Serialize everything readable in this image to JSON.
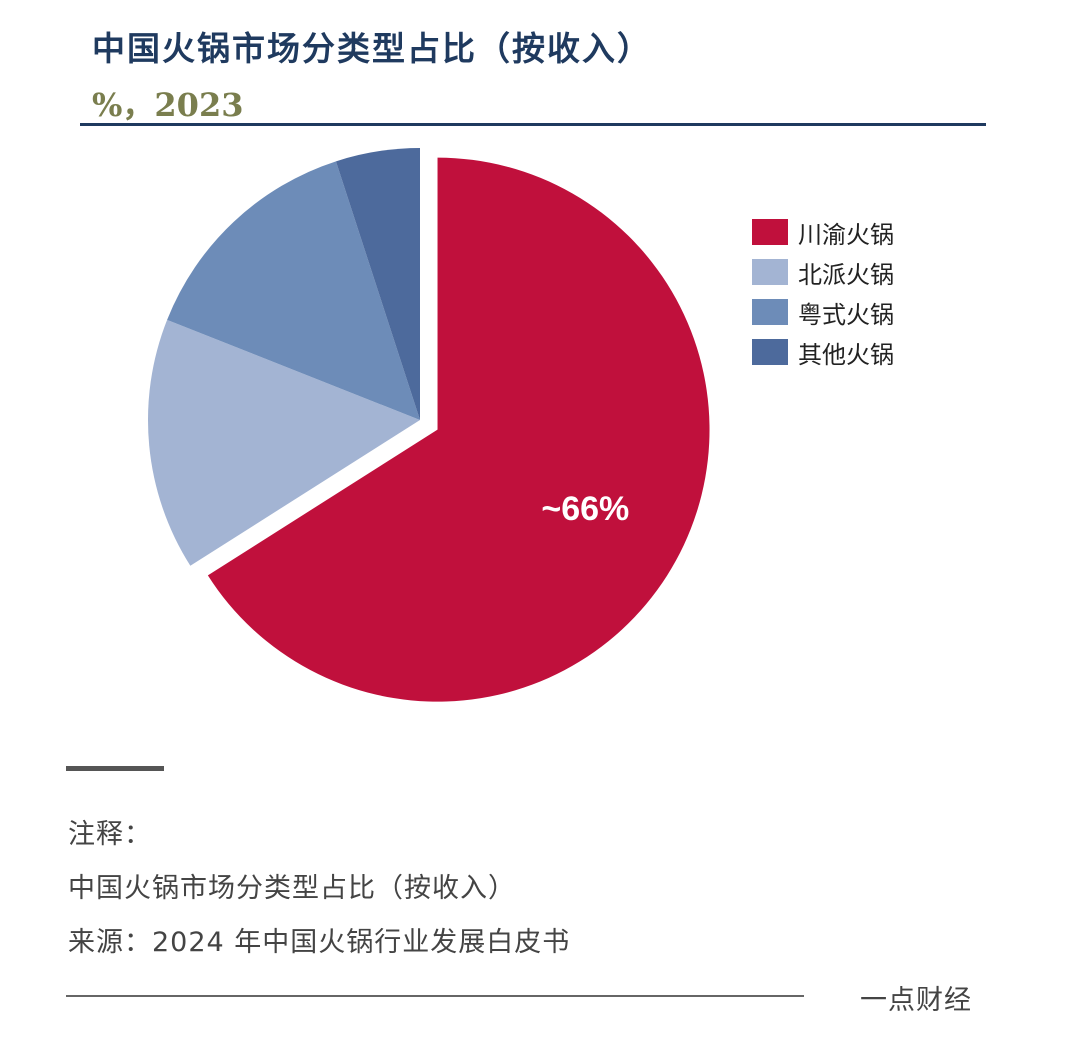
{
  "title": "中国火锅市场分类型占比（按收入）",
  "subtitle": "%，2023",
  "chart_data": {
    "type": "pie",
    "title": "中国火锅市场分类型占比（按收入）",
    "subtitle": "%，2023",
    "categories": [
      "川渝火锅",
      "北派火锅",
      "粤式火锅",
      "其他火锅"
    ],
    "values": [
      66,
      15,
      14,
      5
    ],
    "colors": [
      "#c0103c",
      "#a3b4d3",
      "#6d8cb8",
      "#4d6a9c"
    ],
    "data_labels": [
      "~66%",
      "",
      "",
      ""
    ],
    "exploded": [
      "川渝火锅"
    ],
    "legend_position": "right"
  },
  "notes": {
    "heading": "注释：",
    "line1": "中国火锅市场分类型占比（按收入）",
    "source": "来源：2024 年中国火锅行业发展白皮书"
  },
  "watermark": "一点财经"
}
